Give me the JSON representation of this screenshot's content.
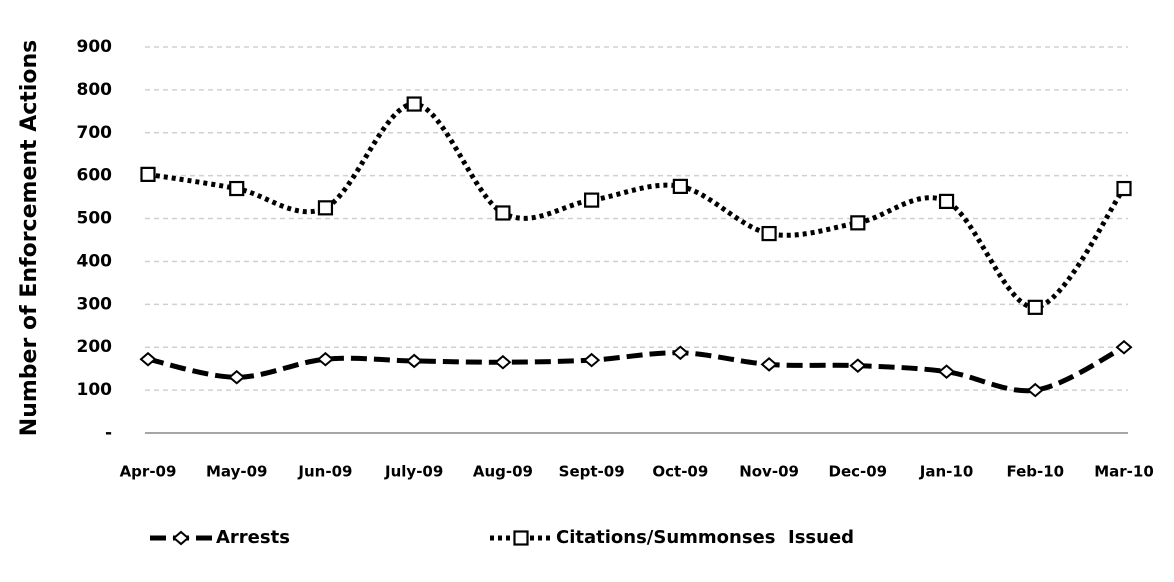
{
  "chart_data": {
    "type": "line",
    "y_label": "Number of Enforcement Actions",
    "categories": [
      "Apr-09",
      "May-09",
      "Jun-09",
      "July-09",
      "Aug-09",
      "Sept-09",
      "Oct-09",
      "Nov-09",
      "Dec-09",
      "Jan-10",
      "Feb-10",
      "Mar-10"
    ],
    "series": [
      {
        "name": "Arrests",
        "color": "#000000",
        "marker": "diamond",
        "line_style": "dashed",
        "values": [
          172,
          130,
          172,
          168,
          165,
          170,
          187,
          160,
          157,
          143,
          100,
          200
        ]
      },
      {
        "name": "Citations/Summonses  Issued",
        "color": "#000000",
        "marker": "square",
        "line_style": "dotted",
        "values": [
          603,
          570,
          525,
          767,
          513,
          543,
          575,
          465,
          490,
          540,
          293,
          570
        ]
      }
    ],
    "ylim": [
      0,
      900
    ],
    "yticks": [
      {
        "value": 0,
        "label": "-"
      },
      100,
      200,
      300,
      400,
      500,
      600,
      700,
      800,
      900
    ],
    "grid": true,
    "legend": "bottom"
  }
}
